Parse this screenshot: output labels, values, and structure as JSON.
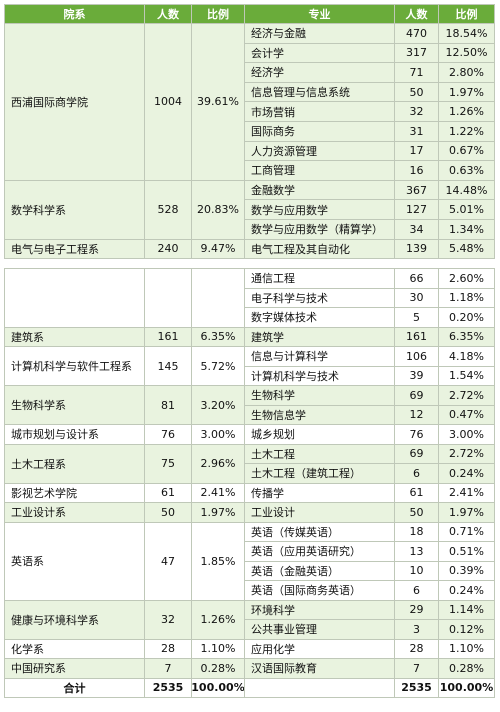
{
  "headers": [
    "院系",
    "人数",
    "比例",
    "专业",
    "人数",
    "比例"
  ],
  "top_groups": [
    {
      "college": "西浦国际商学院",
      "count": "1004",
      "ratio": "39.61%",
      "majors": [
        {
          "name": "经济与金融",
          "count": "470",
          "ratio": "18.54%"
        },
        {
          "name": "会计学",
          "count": "317",
          "ratio": "12.50%"
        },
        {
          "name": "经济学",
          "count": "71",
          "ratio": "2.80%"
        },
        {
          "name": "信息管理与信息系统",
          "count": "50",
          "ratio": "1.97%"
        },
        {
          "name": "市场营销",
          "count": "32",
          "ratio": "1.26%"
        },
        {
          "name": "国际商务",
          "count": "31",
          "ratio": "1.22%"
        },
        {
          "name": "人力资源管理",
          "count": "17",
          "ratio": "0.67%"
        },
        {
          "name": "工商管理",
          "count": "16",
          "ratio": "0.63%"
        }
      ]
    },
    {
      "college": "数学科学系",
      "count": "528",
      "ratio": "20.83%",
      "majors": [
        {
          "name": "金融数学",
          "count": "367",
          "ratio": "14.48%"
        },
        {
          "name": "数学与应用数学",
          "count": "127",
          "ratio": "5.01%"
        },
        {
          "name": "数学与应用数学（精算学）",
          "count": "34",
          "ratio": "1.34%"
        }
      ]
    },
    {
      "college": "电气与电子工程系",
      "count": "240",
      "ratio": "9.47%",
      "majors": [
        {
          "name": "电气工程及其自动化",
          "count": "139",
          "ratio": "5.48%"
        }
      ]
    }
  ],
  "bottom_groups": [
    {
      "college": "",
      "count": "",
      "ratio": "",
      "majors": [
        {
          "name": "通信工程",
          "count": "66",
          "ratio": "2.60%"
        },
        {
          "name": "电子科学与技术",
          "count": "30",
          "ratio": "1.18%"
        },
        {
          "name": "数字媒体技术",
          "count": "5",
          "ratio": "0.20%"
        }
      ]
    },
    {
      "college": "建筑系",
      "count": "161",
      "ratio": "6.35%",
      "majors": [
        {
          "name": "建筑学",
          "count": "161",
          "ratio": "6.35%"
        }
      ]
    },
    {
      "college": "计算机科学与软件工程系",
      "count": "145",
      "ratio": "5.72%",
      "majors": [
        {
          "name": "信息与计算科学",
          "count": "106",
          "ratio": "4.18%"
        },
        {
          "name": "计算机科学与技术",
          "count": "39",
          "ratio": "1.54%"
        }
      ]
    },
    {
      "college": "生物科学系",
      "count": "81",
      "ratio": "3.20%",
      "majors": [
        {
          "name": "生物科学",
          "count": "69",
          "ratio": "2.72%"
        },
        {
          "name": "生物信息学",
          "count": "12",
          "ratio": "0.47%"
        }
      ]
    },
    {
      "college": "城市规划与设计系",
      "count": "76",
      "ratio": "3.00%",
      "majors": [
        {
          "name": "城乡规划",
          "count": "76",
          "ratio": "3.00%"
        }
      ]
    },
    {
      "college": "土木工程系",
      "count": "75",
      "ratio": "2.96%",
      "majors": [
        {
          "name": "土木工程",
          "count": "69",
          "ratio": "2.72%"
        },
        {
          "name": "土木工程（建筑工程）",
          "count": "6",
          "ratio": "0.24%"
        }
      ]
    },
    {
      "college": "影视艺术学院",
      "count": "61",
      "ratio": "2.41%",
      "majors": [
        {
          "name": "传播学",
          "count": "61",
          "ratio": "2.41%"
        }
      ]
    },
    {
      "college": "工业设计系",
      "count": "50",
      "ratio": "1.97%",
      "majors": [
        {
          "name": "工业设计",
          "count": "50",
          "ratio": "1.97%"
        }
      ]
    },
    {
      "college": "英语系",
      "count": "47",
      "ratio": "1.85%",
      "majors": [
        {
          "name": "英语（传媒英语）",
          "count": "18",
          "ratio": "0.71%"
        },
        {
          "name": "英语（应用英语研究）",
          "count": "13",
          "ratio": "0.51%"
        },
        {
          "name": "英语（金融英语）",
          "count": "10",
          "ratio": "0.39%"
        },
        {
          "name": "英语（国际商务英语）",
          "count": "6",
          "ratio": "0.24%"
        }
      ]
    },
    {
      "college": "健康与环境科学系",
      "count": "32",
      "ratio": "1.26%",
      "majors": [
        {
          "name": "环境科学",
          "count": "29",
          "ratio": "1.14%"
        },
        {
          "name": "公共事业管理",
          "count": "3",
          "ratio": "0.12%"
        }
      ]
    },
    {
      "college": "化学系",
      "count": "28",
      "ratio": "1.10%",
      "majors": [
        {
          "name": "应用化学",
          "count": "28",
          "ratio": "1.10%"
        }
      ]
    },
    {
      "college": "中国研究系",
      "count": "7",
      "ratio": "0.28%",
      "majors": [
        {
          "name": "汉语国际教育",
          "count": "7",
          "ratio": "0.28%"
        }
      ]
    }
  ],
  "total": {
    "label": "合计",
    "count": "2535",
    "ratio": "100.00%",
    "major_count": "2535",
    "major_ratio": "100.00%"
  },
  "colors": {
    "header_green": "#6aac3a",
    "light_green": "#e9f3df",
    "border": "#bfc8b8"
  }
}
